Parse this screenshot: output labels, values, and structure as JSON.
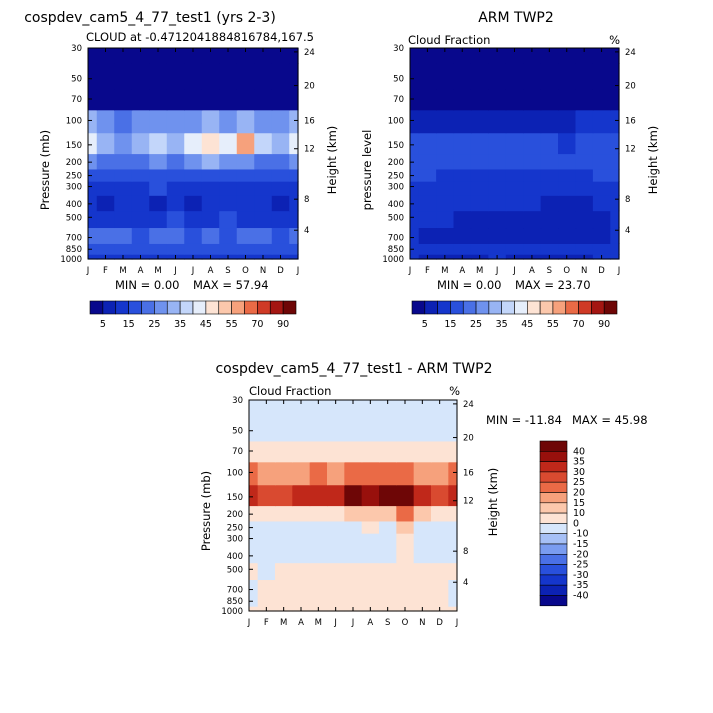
{
  "colors": {
    "scale_a": [
      "#08088c",
      "#0c22b4",
      "#1536cc",
      "#2950dc",
      "#4a70e6",
      "#6f92ee",
      "#98b4f4",
      "#c3d6fa",
      "#e6eefb",
      "#fde3d4",
      "#fcc8ac",
      "#f6a17c",
      "#ea6a46",
      "#cf3a26",
      "#a41612",
      "#6e0606"
    ],
    "scale_diff": [
      "#08088c",
      "#0c22b4",
      "#1536cc",
      "#2950dc",
      "#4a70e6",
      "#7a9cf0",
      "#a6c0f6",
      "#d6e6fb",
      "#fde3d4",
      "#fcc8ac",
      "#f6a17c",
      "#ea6a46",
      "#d94a30",
      "#c0281a",
      "#98100c",
      "#6e0606"
    ]
  },
  "chart_data": [
    {
      "type": "heatmap",
      "title": "cospdev_cam5_4_77_test1 (yrs 2-3)",
      "subtitle": "CLOUD at -0.4712041884816784,167.5",
      "unit": "",
      "xlabel": "",
      "ylabel": "Pressure (mb)",
      "ylabel_right": "Height (km)",
      "categories": [
        "J",
        "F",
        "M",
        "A",
        "M",
        "J",
        "J",
        "A",
        "S",
        "O",
        "N",
        "D",
        "J"
      ],
      "y_ticks": [
        "30",
        "50",
        "70",
        "100",
        "150",
        "200",
        "250",
        "300",
        "400",
        "500",
        "700",
        "850",
        "1000"
      ],
      "y_ticks_right": [
        "24",
        "20",
        "16",
        "12",
        "8",
        "4"
      ],
      "levels": [
        1000,
        850,
        700,
        500,
        400,
        300,
        250,
        200,
        150,
        100,
        70,
        50,
        30
      ],
      "min_label": "MIN = 0.00",
      "max_label": "MAX = 57.94",
      "min": 0.0,
      "max": 57.94,
      "values": [
        [
          12,
          12,
          12,
          12,
          12,
          12,
          12,
          12,
          12,
          12,
          12,
          12,
          12
        ],
        [
          17,
          18,
          17,
          17,
          18,
          18,
          17,
          17,
          18,
          18,
          17,
          17,
          17
        ],
        [
          20,
          20,
          20,
          19,
          20,
          20,
          19,
          20,
          18,
          20,
          20,
          19,
          20
        ],
        [
          13,
          14,
          14,
          12,
          14,
          15,
          12,
          14,
          15,
          12,
          13,
          13,
          13
        ],
        [
          11,
          8,
          12,
          11,
          8,
          11,
          8,
          12,
          11,
          10,
          12,
          8,
          11
        ],
        [
          14,
          14,
          14,
          14,
          15,
          14,
          14,
          13,
          14,
          13,
          14,
          14,
          14
        ],
        [
          17,
          16,
          17,
          17,
          16,
          17,
          16,
          18,
          16,
          18,
          16,
          17,
          17
        ],
        [
          25,
          23,
          22,
          24,
          25,
          22,
          26,
          30,
          29,
          28,
          24,
          23,
          25
        ],
        [
          42,
          34,
          28,
          32,
          36,
          34,
          44,
          47,
          42,
          57,
          38,
          32,
          42
        ],
        [
          30,
          25,
          22,
          26,
          28,
          25,
          28,
          30,
          28,
          30,
          28,
          26,
          30
        ],
        [
          3,
          3,
          3,
          3,
          3,
          3,
          3,
          3,
          3,
          3,
          3,
          3,
          3
        ],
        [
          1,
          1,
          1,
          1,
          1,
          1,
          1,
          1,
          1,
          1,
          1,
          1,
          1
        ],
        [
          0,
          0,
          0,
          0,
          0,
          0,
          0,
          0,
          0,
          0,
          0,
          0,
          0
        ]
      ],
      "colorbar_labels": [
        "5",
        "15",
        "25",
        "35",
        "45",
        "55",
        "70",
        "90"
      ]
    },
    {
      "type": "heatmap",
      "title": "ARM TWP2",
      "subtitle": "Cloud Fraction",
      "unit": "%",
      "xlabel": "",
      "ylabel": "pressure level",
      "ylabel_right": "Height (km)",
      "categories": [
        "J",
        "F",
        "M",
        "A",
        "M",
        "J",
        "J",
        "A",
        "S",
        "O",
        "N",
        "D",
        "J"
      ],
      "y_ticks": [
        "30",
        "50",
        "70",
        "100",
        "150",
        "200",
        "250",
        "300",
        "400",
        "500",
        "700",
        "850",
        "1000"
      ],
      "y_ticks_right": [
        "24",
        "20",
        "16",
        "12",
        "8",
        "4"
      ],
      "levels": [
        1000,
        850,
        700,
        500,
        400,
        300,
        250,
        200,
        150,
        100,
        70,
        50,
        30
      ],
      "min_label": "MIN = 0.00",
      "max_label": "MAX = 23.70",
      "min": 0.0,
      "max": 23.7,
      "values": [
        [
          10,
          9,
          9,
          9,
          9,
          10,
          9,
          9,
          9,
          9,
          9,
          10,
          10
        ],
        [
          12,
          11,
          11,
          11,
          10,
          10,
          11,
          10,
          11,
          10,
          11,
          11,
          12
        ],
        [
          11,
          8,
          9,
          9,
          5,
          7,
          6,
          8,
          6,
          5,
          6,
          8,
          10
        ],
        [
          12,
          10,
          10,
          9,
          9,
          9,
          9,
          9,
          6,
          5,
          6,
          9,
          11
        ],
        [
          13,
          11,
          10,
          10,
          10,
          10,
          10,
          10,
          7,
          7,
          8,
          10,
          12
        ],
        [
          14,
          13,
          12,
          12,
          12,
          12,
          12,
          11,
          10,
          10,
          11,
          13,
          14
        ],
        [
          16,
          15,
          14,
          14,
          14,
          14,
          14,
          13,
          13,
          12,
          13,
          15,
          16
        ],
        [
          18,
          17,
          16,
          16,
          15,
          15,
          16,
          15,
          16,
          15,
          16,
          17,
          18
        ],
        [
          17,
          16,
          15,
          15,
          15,
          15,
          15,
          15,
          15,
          14,
          15,
          16,
          17
        ],
        [
          9,
          8,
          6,
          5,
          5,
          5,
          6,
          6,
          7,
          9,
          10,
          11,
          12
        ],
        [
          3,
          2,
          1,
          1,
          1,
          1,
          1,
          1,
          1,
          2,
          2,
          3,
          4
        ],
        [
          0,
          0,
          0,
          0,
          0,
          0,
          0,
          0,
          0,
          0,
          0,
          0,
          0
        ],
        [
          0,
          0,
          0,
          0,
          0,
          0,
          0,
          0,
          0,
          0,
          0,
          0,
          0
        ]
      ],
      "colorbar_labels": [
        "5",
        "15",
        "25",
        "35",
        "45",
        "55",
        "70",
        "90"
      ]
    },
    {
      "type": "heatmap",
      "title": "cospdev_cam5_4_77_test1 - ARM TWP2",
      "subtitle": "Cloud Fraction",
      "unit": "%",
      "xlabel": "",
      "ylabel": "Pressure (mb)",
      "ylabel_right": "Height (km)",
      "categories": [
        "J",
        "F",
        "M",
        "A",
        "M",
        "J",
        "J",
        "A",
        "S",
        "O",
        "N",
        "D",
        "J"
      ],
      "y_ticks": [
        "30",
        "50",
        "70",
        "100",
        "150",
        "200",
        "250",
        "300",
        "400",
        "500",
        "700",
        "850",
        "1000"
      ],
      "y_ticks_right": [
        "24",
        "20",
        "16",
        "12",
        "8",
        "4"
      ],
      "levels": [
        1000,
        850,
        700,
        500,
        400,
        300,
        250,
        200,
        150,
        100,
        70,
        50,
        30
      ],
      "min_label": "MIN = -11.84",
      "max_label": "MAX = 45.98",
      "min": -11.84,
      "max": 45.98,
      "values": [
        [
          1,
          2,
          2,
          2,
          2,
          2,
          2,
          2,
          2,
          2,
          2,
          1,
          1
        ],
        [
          -2,
          2,
          2,
          2,
          3,
          3,
          3,
          3,
          3,
          3,
          3,
          2,
          -2
        ],
        [
          -3,
          2,
          3,
          3,
          4,
          4,
          4,
          4,
          4,
          4,
          4,
          3,
          -3
        ],
        [
          3,
          -2,
          4,
          3,
          4,
          3,
          3,
          4,
          6,
          4,
          3,
          3,
          3
        ],
        [
          -3,
          -10,
          -3,
          -2,
          -2,
          -3,
          -3,
          -2,
          -2,
          4,
          -3,
          -3,
          -3
        ],
        [
          -3,
          -2,
          -2,
          -2,
          -2,
          -2,
          -2,
          -2,
          -3,
          8,
          -3,
          -2,
          -3
        ],
        [
          -4,
          -3,
          -3,
          -3,
          -3,
          -3,
          -3,
          5,
          -3,
          10,
          -3,
          -3,
          -4
        ],
        [
          8,
          6,
          6,
          7,
          9,
          8,
          10,
          12,
          12,
          20,
          10,
          8,
          8
        ],
        [
          32,
          28,
          28,
          30,
          34,
          32,
          40,
          36,
          42,
          46,
          30,
          28,
          32
        ],
        [
          22,
          18,
          16,
          18,
          20,
          18,
          22,
          20,
          22,
          22,
          18,
          17,
          22
        ],
        [
          4,
          3,
          3,
          3,
          3,
          3,
          3,
          3,
          3,
          3,
          3,
          4,
          4
        ],
        [
          -1,
          -1,
          -1,
          -1,
          -1,
          -1,
          -1,
          -1,
          -1,
          -1,
          -1,
          -1,
          -1
        ],
        [
          -1,
          -1,
          -1,
          -1,
          -1,
          -1,
          -1,
          -1,
          -1,
          -1,
          -1,
          -1,
          -1
        ]
      ],
      "colorbar_labels": [
        "40",
        "35",
        "30",
        "25",
        "20",
        "15",
        "10",
        "0",
        "-10",
        "-15",
        "-20",
        "-25",
        "-30",
        "-35",
        "-40"
      ]
    }
  ]
}
